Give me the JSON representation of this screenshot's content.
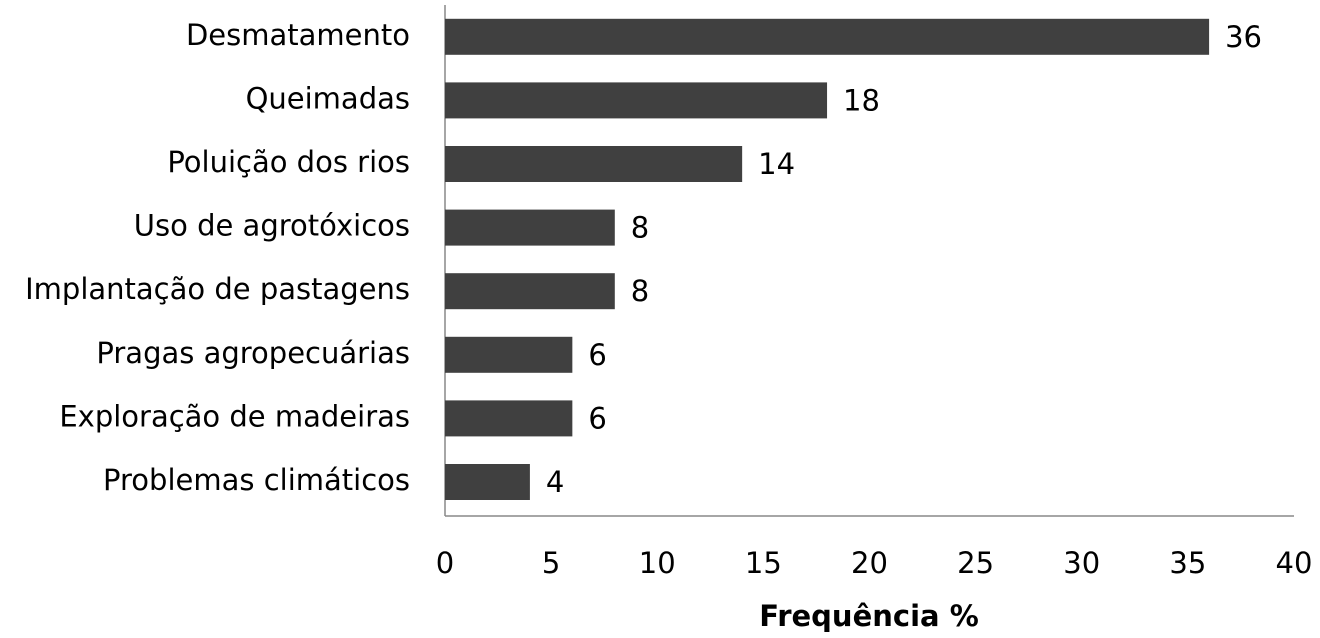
{
  "chart_data": {
    "type": "barh",
    "categories": [
      "Desmatamento",
      "Queimadas",
      "Poluição dos rios",
      "Uso de agrotóxicos",
      "Implantação de pastagens",
      "Pragas agropecuárias",
      "Exploração de madeiras",
      "Problemas climáticos"
    ],
    "values": [
      36,
      18,
      14,
      8,
      8,
      6,
      6,
      4
    ],
    "color": "#404040",
    "x_label": "Frequência %",
    "xlim": [
      0,
      40
    ],
    "xticks": [
      0,
      5,
      10,
      15,
      20,
      25,
      30,
      35,
      40
    ],
    "grid": false
  }
}
